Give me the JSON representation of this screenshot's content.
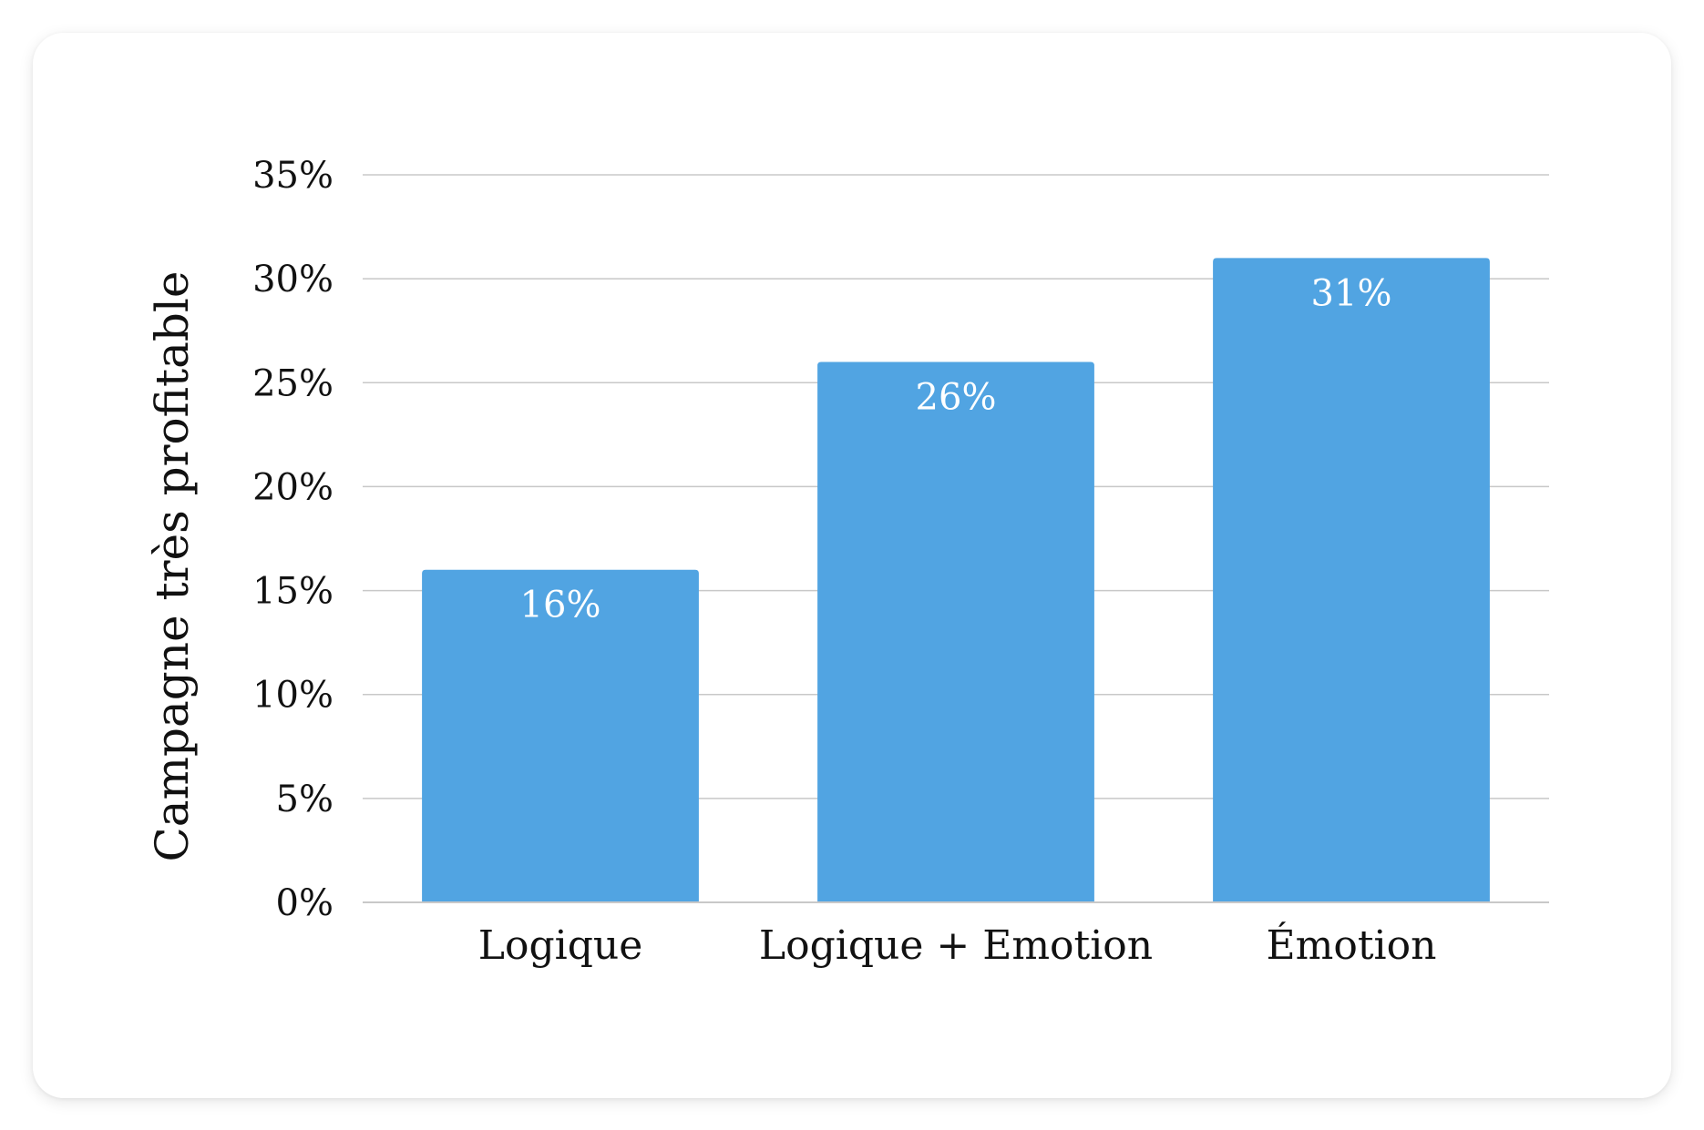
{
  "chart_data": {
    "type": "bar",
    "categories": [
      "Logique",
      "Logique + Emotion",
      "Émotion"
    ],
    "values": [
      16,
      26,
      31
    ],
    "data_labels": [
      "16%",
      "26%",
      "31%"
    ],
    "ylabel": "Campagne très profitable",
    "ylim": [
      0,
      35
    ],
    "yticks": [
      0,
      5,
      10,
      15,
      20,
      25,
      30,
      35
    ],
    "ytick_labels": [
      "0%",
      "5%",
      "10%",
      "15%",
      "20%",
      "25%",
      "30%",
      "35%"
    ],
    "grid": true,
    "legend": "none",
    "bar_color": "#51a4e2",
    "grid_color": "#c8c8c8"
  }
}
